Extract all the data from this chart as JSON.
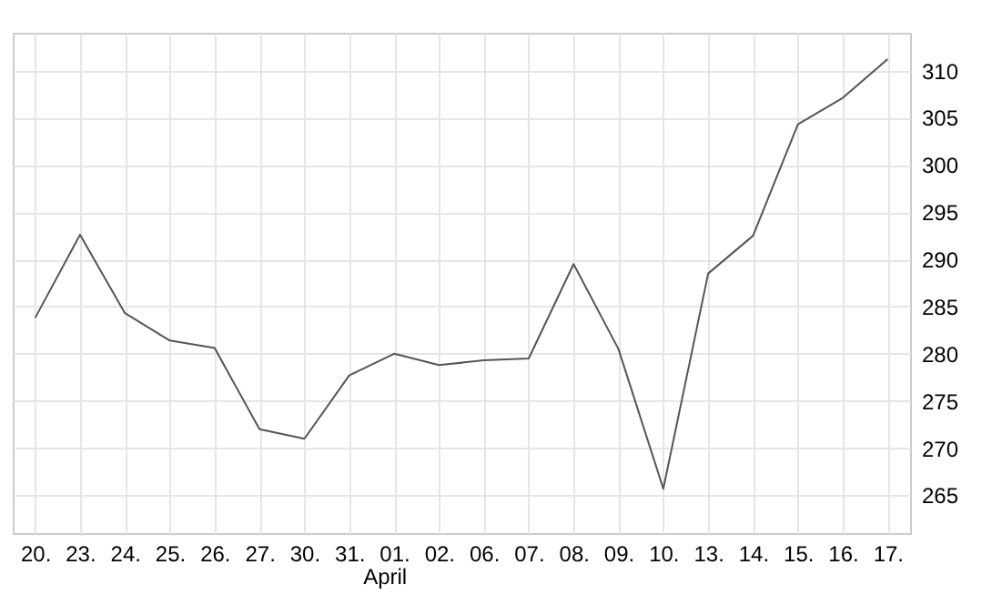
{
  "chart_data": {
    "type": "line",
    "categories": [
      "20.",
      "23.",
      "24.",
      "25.",
      "26.",
      "27.",
      "30.",
      "31.",
      "01.",
      "02.",
      "06.",
      "07.",
      "08.",
      "09.",
      "10.",
      "13.",
      "14.",
      "15.",
      "16.",
      "17."
    ],
    "series": [
      {
        "color": "#555555",
        "values": [
          283.8,
          292.6,
          284.3,
          281.4,
          280.6,
          272.0,
          271.0,
          277.7,
          280.0,
          278.8,
          279.3,
          279.5,
          289.5,
          280.5,
          265.7,
          288.5,
          292.5,
          304.3,
          307.1,
          311.2
        ]
      }
    ],
    "ylim": [
      261,
      314
    ],
    "yticks": [
      265,
      270,
      275,
      280,
      285,
      290,
      295,
      300,
      305,
      310
    ],
    "grid": true,
    "marker": "none",
    "line_style": "solid",
    "annotations": [
      "April"
    ]
  }
}
